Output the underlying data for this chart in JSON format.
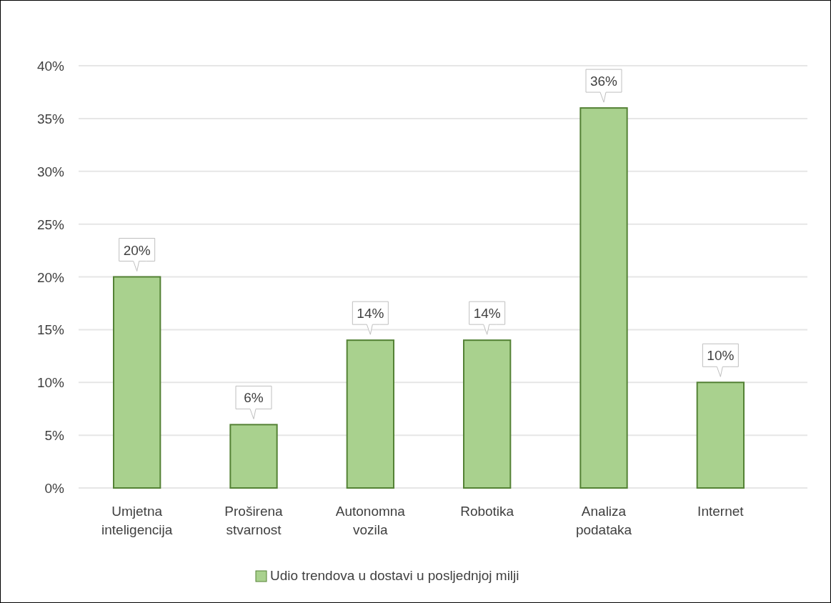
{
  "chart_data": {
    "type": "bar",
    "categories": [
      "Umjetna inteligencija",
      "Proširena stvarnost",
      "Autonomna vozila",
      "Robotika",
      "Analiza podataka",
      "Internet"
    ],
    "series": [
      {
        "name": "Udio trendova u dostavi u posljednjoj milji",
        "color": "#a9d18e",
        "values": [
          20,
          6,
          14,
          14,
          36,
          10
        ],
        "value_labels": [
          "20%",
          "6%",
          "14%",
          "14%",
          "36%",
          "10%"
        ]
      }
    ],
    "ylim": [
      0,
      40
    ],
    "yticks": [
      {
        "value": 0,
        "label": "0%"
      },
      {
        "value": 5,
        "label": "5%"
      },
      {
        "value": 10,
        "label": "10%"
      },
      {
        "value": 15,
        "label": "15%"
      },
      {
        "value": 20,
        "label": "20%"
      },
      {
        "value": 25,
        "label": "25%"
      },
      {
        "value": 30,
        "label": "30%"
      },
      {
        "value": 35,
        "label": "35%"
      },
      {
        "value": 40,
        "label": "40%"
      }
    ],
    "grid": true,
    "legend": "bottom"
  }
}
